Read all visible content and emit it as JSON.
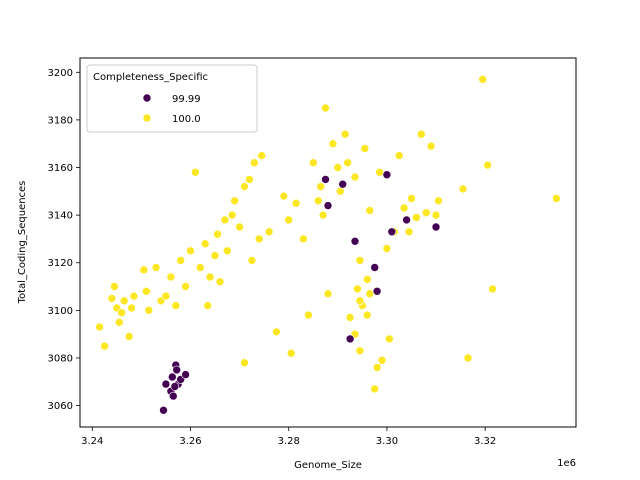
{
  "chart_data": {
    "type": "scatter",
    "title": "",
    "xlabel": "Genome_Size",
    "ylabel": "Total_Coding_Sequences",
    "x_offset_label": "1e6",
    "xlim": [
      3.2375,
      3.3385
    ],
    "ylim": [
      3051,
      3206
    ],
    "x_ticks": [
      3.24,
      3.26,
      3.28,
      3.3,
      3.32
    ],
    "x_tick_labels": [
      "3.24",
      "3.26",
      "3.28",
      "3.30",
      "3.32"
    ],
    "y_ticks": [
      3060,
      3080,
      3100,
      3120,
      3140,
      3160,
      3180,
      3200
    ],
    "y_tick_labels": [
      "3060",
      "3080",
      "3100",
      "3120",
      "3140",
      "3160",
      "3180",
      "3200"
    ],
    "grid": false,
    "legend": {
      "title": "Completeness_Specific",
      "position": "top-left"
    },
    "series": [
      {
        "name": "100.0",
        "color": "#fde725",
        "points": [
          [
            3.2415,
            3093
          ],
          [
            3.2425,
            3085
          ],
          [
            3.244,
            3105
          ],
          [
            3.2445,
            3110
          ],
          [
            3.245,
            3101
          ],
          [
            3.2455,
            3095
          ],
          [
            3.246,
            3099
          ],
          [
            3.2465,
            3104
          ],
          [
            3.2475,
            3089
          ],
          [
            3.248,
            3101
          ],
          [
            3.2485,
            3106
          ],
          [
            3.2505,
            3117
          ],
          [
            3.251,
            3108
          ],
          [
            3.2515,
            3100
          ],
          [
            3.253,
            3118
          ],
          [
            3.254,
            3104
          ],
          [
            3.255,
            3106
          ],
          [
            3.256,
            3114
          ],
          [
            3.257,
            3102
          ],
          [
            3.258,
            3121
          ],
          [
            3.259,
            3110
          ],
          [
            3.26,
            3125
          ],
          [
            3.261,
            3158
          ],
          [
            3.262,
            3118
          ],
          [
            3.2635,
            3102
          ],
          [
            3.265,
            3123
          ],
          [
            3.266,
            3112
          ],
          [
            3.267,
            3138
          ],
          [
            3.269,
            3146
          ],
          [
            3.271,
            3152
          ],
          [
            3.272,
            3155
          ],
          [
            3.273,
            3162
          ],
          [
            3.2745,
            3165
          ],
          [
            3.276,
            3133
          ],
          [
            3.2775,
            3091
          ],
          [
            3.271,
            3078
          ],
          [
            3.2805,
            3082
          ],
          [
            3.284,
            3098
          ],
          [
            3.285,
            3162
          ],
          [
            3.2865,
            3152
          ],
          [
            3.287,
            3140
          ],
          [
            3.2875,
            3185
          ],
          [
            3.288,
            3107
          ],
          [
            3.29,
            3160
          ],
          [
            3.2915,
            3174
          ],
          [
            3.2925,
            3097
          ],
          [
            3.2935,
            3090
          ],
          [
            3.2945,
            3083
          ],
          [
            3.295,
            3102
          ],
          [
            3.296,
            3113
          ],
          [
            3.2975,
            3067
          ],
          [
            3.298,
            3076
          ],
          [
            3.299,
            3079
          ],
          [
            3.3005,
            3088
          ],
          [
            3.3025,
            3165
          ],
          [
            3.305,
            3147
          ],
          [
            3.307,
            3174
          ],
          [
            3.309,
            3169
          ],
          [
            3.3105,
            3146
          ],
          [
            3.3155,
            3151
          ],
          [
            3.3165,
            3080
          ],
          [
            3.3195,
            3197
          ],
          [
            3.3205,
            3161
          ],
          [
            3.3215,
            3109
          ],
          [
            3.3345,
            3147
          ],
          [
            3.263,
            3128
          ],
          [
            3.264,
            3114
          ],
          [
            3.2655,
            3132
          ],
          [
            3.2675,
            3125
          ],
          [
            3.2685,
            3140
          ],
          [
            3.27,
            3135
          ],
          [
            3.2725,
            3121
          ],
          [
            3.274,
            3130
          ],
          [
            3.279,
            3148
          ],
          [
            3.28,
            3138
          ],
          [
            3.2815,
            3145
          ],
          [
            3.283,
            3130
          ],
          [
            3.286,
            3146
          ],
          [
            3.289,
            3170
          ],
          [
            3.2905,
            3150
          ],
          [
            3.292,
            3162
          ],
          [
            3.2935,
            3156
          ],
          [
            3.2955,
            3168
          ],
          [
            3.2965,
            3142
          ],
          [
            3.2985,
            3158
          ],
          [
            3.3,
            3126
          ],
          [
            3.3015,
            3133
          ],
          [
            3.3035,
            3143
          ],
          [
            3.3045,
            3133
          ],
          [
            3.306,
            3139
          ],
          [
            3.308,
            3141
          ],
          [
            3.31,
            3140
          ],
          [
            3.294,
            3109
          ],
          [
            3.2945,
            3104
          ],
          [
            3.296,
            3098
          ],
          [
            3.2965,
            3107
          ],
          [
            3.2945,
            3121
          ]
        ]
      },
      {
        "name": "99.99",
        "color": "#440154",
        "points": [
          [
            3.2545,
            3058
          ],
          [
            3.255,
            3069
          ],
          [
            3.256,
            3066
          ],
          [
            3.2565,
            3064
          ],
          [
            3.257,
            3077
          ],
          [
            3.2575,
            3069
          ],
          [
            3.258,
            3071
          ],
          [
            3.259,
            3073
          ],
          [
            3.2563,
            3072
          ],
          [
            3.2572,
            3075
          ],
          [
            3.2568,
            3068
          ],
          [
            3.2875,
            3155
          ],
          [
            3.288,
            3144
          ],
          [
            3.291,
            3153
          ],
          [
            3.2925,
            3088
          ],
          [
            3.2935,
            3129
          ],
          [
            3.2975,
            3118
          ],
          [
            3.298,
            3108
          ],
          [
            3.3,
            3157
          ],
          [
            3.301,
            3133
          ],
          [
            3.304,
            3138
          ],
          [
            3.31,
            3135
          ]
        ]
      }
    ]
  }
}
